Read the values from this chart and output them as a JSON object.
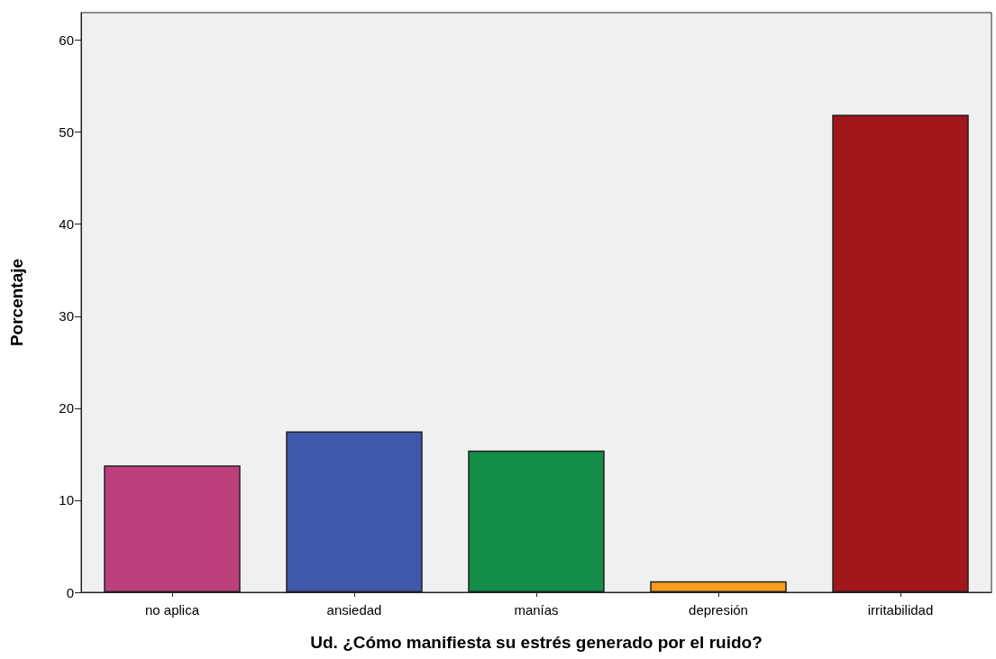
{
  "chart_data": {
    "type": "bar",
    "xlabel": "Ud. ¿Cómo manifiesta su estrés generado por el ruido?",
    "ylabel": "Porcentaje",
    "categories": [
      "no aplica",
      "ansiedad",
      "manías",
      "depresión",
      "irritabilidad"
    ],
    "values": [
      13.8,
      17.5,
      15.4,
      1.2,
      51.9
    ],
    "colors": [
      "#bc3f7c",
      "#3f58ac",
      "#138d47",
      "#f59d1f",
      "#a0161b"
    ],
    "ylim": [
      0,
      63
    ],
    "yticks": [
      0,
      10,
      20,
      30,
      40,
      50,
      60
    ],
    "grid": false
  }
}
